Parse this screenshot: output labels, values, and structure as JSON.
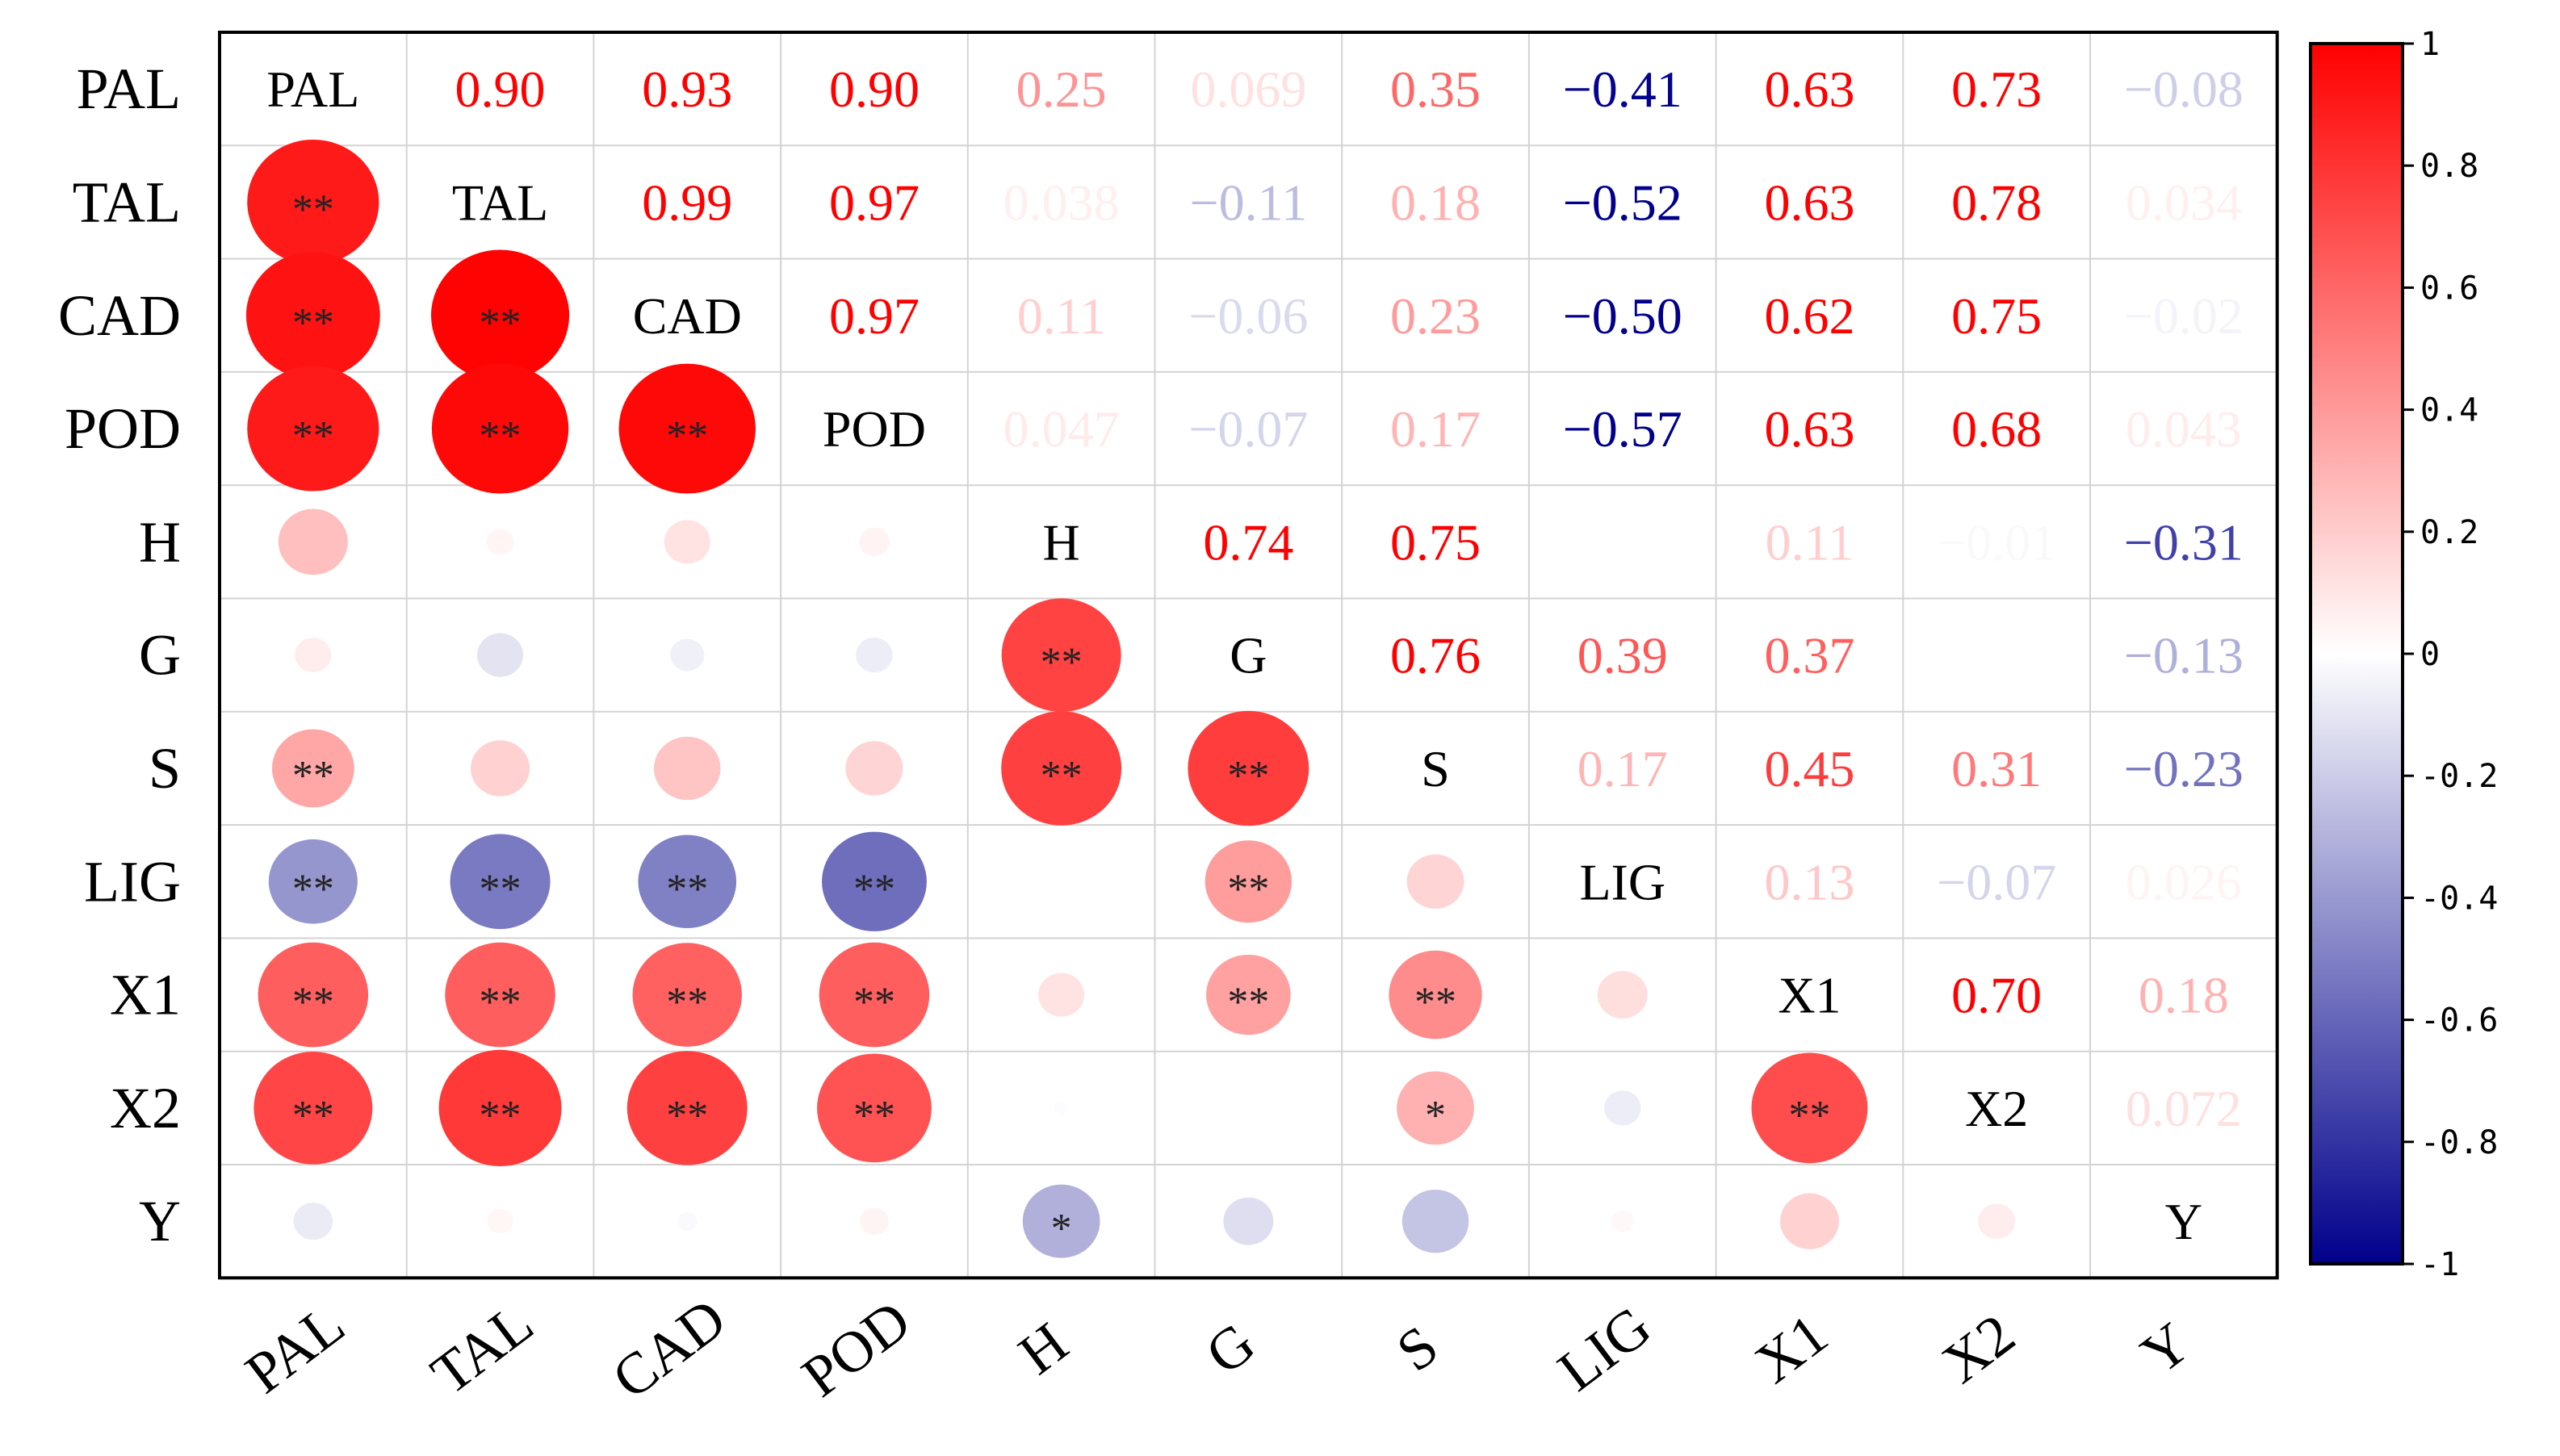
{
  "chart_data": {
    "type": "heatmap",
    "subtype": "correlation-matrix",
    "variables": [
      "PAL",
      "TAL",
      "CAD",
      "POD",
      "H",
      "G",
      "S",
      "LIG",
      "X1",
      "X2",
      "Y"
    ],
    "upper_triangle": "correlation coefficients (text)",
    "lower_triangle": "circles sized by |r|, colored by r, with significance stars",
    "diagonal": "variable names",
    "value_range": [
      -1,
      1
    ],
    "colormap": {
      "low": "#00008B",
      "mid": "#FFFFFF",
      "high": "#FF0000"
    },
    "colorbar_ticks": [
      "1",
      "0.8",
      "0.6",
      "0.4",
      "0.2",
      "0",
      "-0.2",
      "-0.4",
      "-0.6",
      "-0.8",
      "-1"
    ],
    "colorbar_tick_values": [
      1,
      0.8,
      0.6,
      0.4,
      0.2,
      0,
      -0.2,
      -0.4,
      -0.6,
      -0.8,
      -1
    ],
    "matrix": [
      [
        1,
        0.9,
        0.93,
        0.9,
        0.25,
        0.069,
        0.35,
        -0.41,
        0.63,
        0.73,
        -0.08
      ],
      [
        0.9,
        1,
        0.99,
        0.97,
        0.038,
        -0.11,
        0.18,
        -0.52,
        0.63,
        0.78,
        0.034
      ],
      [
        0.93,
        0.99,
        1,
        0.97,
        0.11,
        -0.06,
        0.23,
        -0.5,
        0.62,
        0.75,
        -0.02
      ],
      [
        0.9,
        0.97,
        0.97,
        1,
        0.047,
        -0.07,
        0.17,
        -0.57,
        0.63,
        0.68,
        0.043
      ],
      [
        0.25,
        0.038,
        0.11,
        0.047,
        1,
        0.74,
        0.75,
        0.0,
        0.11,
        -0.01,
        -0.31
      ],
      [
        0.069,
        -0.11,
        -0.06,
        -0.07,
        0.74,
        1,
        0.76,
        0.39,
        0.37,
        0.0,
        -0.13
      ],
      [
        0.35,
        0.18,
        0.23,
        0.17,
        0.75,
        0.76,
        1,
        0.17,
        0.45,
        0.31,
        -0.23
      ],
      [
        -0.41,
        -0.52,
        -0.5,
        -0.57,
        0.0,
        0.39,
        0.17,
        1,
        0.13,
        -0.07,
        0.026
      ],
      [
        0.63,
        0.63,
        0.62,
        0.63,
        0.11,
        0.37,
        0.45,
        0.13,
        1,
        0.7,
        0.18
      ],
      [
        0.73,
        0.78,
        0.75,
        0.68,
        -0.01,
        0.0,
        0.31,
        -0.07,
        0.7,
        1,
        0.072
      ],
      [
        -0.08,
        0.034,
        -0.02,
        0.043,
        -0.31,
        -0.13,
        -0.23,
        0.026,
        0.18,
        0.072,
        1
      ]
    ],
    "upper_labels": [
      [
        "",
        "0.90",
        "0.93",
        "0.90",
        "0.25",
        "0.069",
        "0.35",
        "−0.41",
        "0.63",
        "0.73",
        "−0.08"
      ],
      [
        "",
        "",
        "0.99",
        "0.97",
        "0.038",
        "−0.11",
        "0.18",
        "−0.52",
        "0.63",
        "0.78",
        "0.034"
      ],
      [
        "",
        "",
        "",
        "0.97",
        "0.11",
        "−0.06",
        "0.23",
        "−0.50",
        "0.62",
        "0.75",
        "−0.02"
      ],
      [
        "",
        "",
        "",
        "",
        "0.047",
        "−0.07",
        "0.17",
        "−0.57",
        "0.63",
        "0.68",
        "0.043"
      ],
      [
        "",
        "",
        "",
        "",
        "",
        "0.74",
        "0.75",
        "",
        "0.11",
        "−0.01",
        "−0.31"
      ],
      [
        "",
        "",
        "",
        "",
        "",
        "",
        "0.76",
        "0.39",
        "0.37",
        "",
        "−0.13"
      ],
      [
        "",
        "",
        "",
        "",
        "",
        "",
        "",
        "0.17",
        "0.45",
        "0.31",
        "−0.23"
      ],
      [
        "",
        "",
        "",
        "",
        "",
        "",
        "",
        "",
        "0.13",
        "−0.07",
        "0.026"
      ],
      [
        "",
        "",
        "",
        "",
        "",
        "",
        "",
        "",
        "",
        "0.70",
        "0.18"
      ],
      [
        "",
        "",
        "",
        "",
        "",
        "",
        "",
        "",
        "",
        "",
        "0.072"
      ],
      [
        "",
        "",
        "",
        "",
        "",
        "",
        "",
        "",
        "",
        "",
        ""
      ]
    ],
    "significance": [
      [
        "",
        "",
        "",
        "",
        "",
        "",
        "",
        "",
        "",
        "",
        ""
      ],
      [
        "**",
        "",
        "",
        "",
        "",
        "",
        "",
        "",
        "",
        "",
        ""
      ],
      [
        "**",
        "**",
        "",
        "",
        "",
        "",
        "",
        "",
        "",
        "",
        ""
      ],
      [
        "**",
        "**",
        "**",
        "",
        "",
        "",
        "",
        "",
        "",
        "",
        ""
      ],
      [
        "",
        "",
        "",
        "",
        "",
        "",
        "",
        "",
        "",
        "",
        ""
      ],
      [
        "",
        "",
        "",
        "",
        "**",
        "",
        "",
        "",
        "",
        "",
        ""
      ],
      [
        "**",
        "",
        "",
        "",
        "**",
        "**",
        "",
        "",
        "",
        "",
        ""
      ],
      [
        "**",
        "**",
        "**",
        "**",
        "",
        "**",
        "",
        "",
        "",
        "",
        ""
      ],
      [
        "**",
        "**",
        "**",
        "**",
        "",
        "**",
        "**",
        "",
        "",
        "",
        ""
      ],
      [
        "**",
        "**",
        "**",
        "**",
        "",
        "",
        "*",
        "",
        "**",
        "",
        ""
      ],
      [
        "",
        "",
        "",
        "",
        "*",
        "",
        "",
        "",
        "",
        "",
        ""
      ]
    ]
  }
}
